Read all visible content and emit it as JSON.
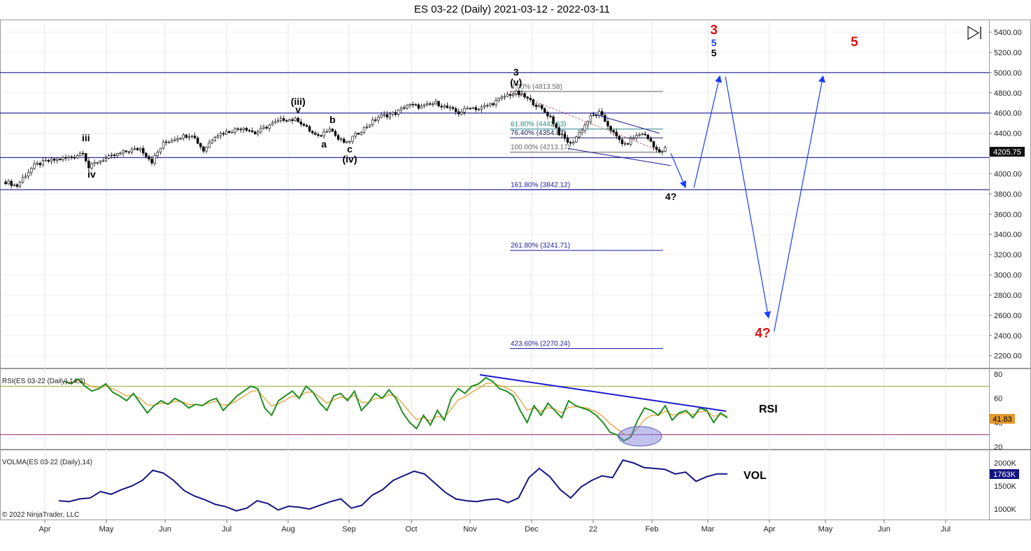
{
  "title": "ES 03-22 (Daily)  2021-03-12 - 2022-03-11",
  "copyright": "© 2022 NinjaTrader, LLC",
  "play_icon": "skip-forward-icon",
  "panels": {
    "rsi": {
      "label": "RSI(ES 03-22 (Daily),14,3)",
      "tag": "RSI",
      "current": "41.83"
    },
    "vol": {
      "label": "VOLMA(ES 03-22 (Daily),14)",
      "tag": "VOL",
      "current": "1763K"
    }
  },
  "price_current": "4205.75",
  "colors": {
    "candle": "#000000",
    "fib_blue": "#1a1aa0",
    "fib_gray": "#666666",
    "fib_teal": "#2a8a8a",
    "arrow": "#1a3cff",
    "red": "#e01010",
    "rsi": "#1f8f1f",
    "rsi_signal": "#e39a2d",
    "vol": "#141480",
    "hline": "#1a1a90",
    "ob": "#9aa830",
    "os": "#a0206a"
  },
  "chart_data": [
    {
      "type": "candlestick",
      "x_axis": [
        "Apr",
        "May",
        "Jun",
        "Jul",
        "Aug",
        "Sep",
        "Oct",
        "Nov",
        "Dec",
        "22",
        "Feb",
        "Mar",
        "Apr",
        "May",
        "Jun",
        "Jul"
      ],
      "ylim": [
        2100,
        5500
      ],
      "y_ticks": [
        "2200.00",
        "2400.00",
        "2600.00",
        "2800.00",
        "3000.00",
        "3200.00",
        "3400.00",
        "3600.00",
        "3800.00",
        "4000.00",
        "4200.00",
        "4400.00",
        "4600.00",
        "4800.00",
        "5000.00",
        "5200.00",
        "5400.00"
      ],
      "path": [
        [
          0,
          3920
        ],
        [
          4,
          3880
        ],
        [
          6,
          3960
        ],
        [
          10,
          4080
        ],
        [
          14,
          4120
        ],
        [
          18,
          4140
        ],
        [
          24,
          4170
        ],
        [
          27,
          4220
        ],
        [
          29,
          4060
        ],
        [
          32,
          4120
        ],
        [
          37,
          4170
        ],
        [
          42,
          4220
        ],
        [
          47,
          4250
        ],
        [
          51,
          4120
        ],
        [
          55,
          4300
        ],
        [
          60,
          4360
        ],
        [
          65,
          4390
        ],
        [
          69,
          4230
        ],
        [
          73,
          4380
        ],
        [
          78,
          4420
        ],
        [
          83,
          4460
        ],
        [
          87,
          4400
        ],
        [
          92,
          4480
        ],
        [
          97,
          4540
        ],
        [
          102,
          4530
        ],
        [
          107,
          4400
        ],
        [
          109,
          4360
        ],
        [
          113,
          4460
        ],
        [
          116,
          4340
        ],
        [
          119,
          4300
        ],
        [
          121,
          4360
        ],
        [
          125,
          4450
        ],
        [
          130,
          4560
        ],
        [
          136,
          4600
        ],
        [
          140,
          4680
        ],
        [
          145,
          4660
        ],
        [
          150,
          4700
        ],
        [
          155,
          4640
        ],
        [
          158,
          4600
        ],
        [
          162,
          4660
        ],
        [
          165,
          4640
        ],
        [
          170,
          4700
        ],
        [
          175,
          4780
        ],
        [
          178,
          4800
        ],
        [
          181,
          4760
        ],
        [
          186,
          4660
        ],
        [
          190,
          4560
        ],
        [
          193,
          4400
        ],
        [
          197,
          4290
        ],
        [
          201,
          4440
        ],
        [
          204,
          4560
        ],
        [
          207,
          4600
        ],
        [
          210,
          4480
        ],
        [
          213,
          4360
        ],
        [
          216,
          4280
        ],
        [
          219,
          4360
        ],
        [
          222,
          4400
        ],
        [
          225,
          4320
        ],
        [
          228,
          4200
        ],
        [
          230,
          4250
        ]
      ],
      "hlines": [
        5000,
        4600,
        4160,
        3842
      ],
      "fib_levels": [
        {
          "label": "0.00% (4813.58)",
          "value": 4813.58
        },
        {
          "label": "61.80% (4442.53)",
          "value": 4442.53
        },
        {
          "label": "76.40% (4354.87)",
          "value": 4354.87
        },
        {
          "label": "100.00% (4213.17)",
          "value": 4213.17
        },
        {
          "label": "161.80% (3842.12)",
          "value": 3842.12
        },
        {
          "label": "261.80% (3241.71)",
          "value": 3241.71
        },
        {
          "label": "423.60% (2270.24)",
          "value": 2270.24
        }
      ],
      "wave_labels": [
        {
          "text": "iii",
          "day": 28,
          "price": 4320,
          "color": "#000000"
        },
        {
          "text": "iv",
          "day": 30,
          "price": 3960,
          "color": "#000000"
        },
        {
          "text": "(iii)",
          "day": 102,
          "price": 4680,
          "color": "#000000"
        },
        {
          "text": "v",
          "day": 102,
          "price": 4600,
          "color": "#000000"
        },
        {
          "text": "a",
          "day": 111,
          "price": 4260,
          "color": "#000000"
        },
        {
          "text": "b",
          "day": 114,
          "price": 4500,
          "color": "#000000"
        },
        {
          "text": "c",
          "day": 120,
          "price": 4210,
          "color": "#000000"
        },
        {
          "text": "(iv)",
          "day": 120,
          "price": 4110,
          "color": "#000000"
        },
        {
          "text": "3",
          "day": 178,
          "price": 4970,
          "color": "#000000"
        },
        {
          "text": "(v)",
          "day": 178,
          "price": 4870,
          "color": "#000000"
        },
        {
          "text": "4?",
          "day": 232,
          "price": 3740,
          "color": "#000000"
        },
        {
          "text": "3",
          "day": 247,
          "price": 5380,
          "color": "#e01010"
        },
        {
          "text": "5",
          "day": 247,
          "price": 5260,
          "color": "#1a3cff"
        },
        {
          "text": "5",
          "day": 247,
          "price": 5160,
          "color": "#000000"
        },
        {
          "text": "5",
          "day": 296,
          "price": 5260,
          "color": "#e01010"
        },
        {
          "text": "4?",
          "day": 264,
          "price": 2380,
          "color": "#e01010"
        }
      ],
      "projection_arrows": [
        [
          [
            232,
            4200
          ],
          [
            237,
            3870
          ]
        ],
        [
          [
            240,
            3860
          ],
          [
            249,
            4960
          ]
        ],
        [
          [
            251,
            4960
          ],
          [
            266,
            2580
          ]
        ],
        [
          [
            268,
            2440
          ],
          [
            285,
            4960
          ]
        ]
      ]
    },
    {
      "type": "line",
      "name": "RSI",
      "ylim": [
        20,
        80
      ],
      "y_ticks": [
        "20",
        "40",
        "60",
        "80"
      ],
      "overbought": 70,
      "oversold": 30,
      "values": [
        74,
        72,
        76,
        70,
        66,
        68,
        72,
        65,
        62,
        58,
        64,
        56,
        48,
        54,
        58,
        55,
        60,
        57,
        52,
        55,
        54,
        58,
        60,
        50,
        56,
        62,
        66,
        70,
        68,
        52,
        46,
        58,
        62,
        66,
        60,
        70,
        65,
        56,
        50,
        62,
        64,
        58,
        66,
        50,
        56,
        64,
        60,
        67,
        60,
        48,
        40,
        35,
        46,
        38,
        50,
        42,
        60,
        68,
        64,
        70,
        72,
        77,
        74,
        68,
        66,
        62,
        50,
        40,
        54,
        46,
        56,
        50,
        44,
        58,
        54,
        52,
        50,
        46,
        40,
        32,
        30,
        25,
        28,
        42,
        52,
        50,
        46,
        54,
        42,
        48,
        50,
        44,
        52,
        50,
        40,
        48,
        44
      ]
    },
    {
      "type": "line",
      "name": "VOLMA",
      "ylim": [
        900,
        2100
      ],
      "y_ticks": [
        "1000K",
        "1500K",
        "2000K"
      ],
      "values": [
        1180,
        1160,
        1220,
        1240,
        1380,
        1320,
        1420,
        1500,
        1620,
        1840,
        1780,
        1620,
        1400,
        1280,
        1200,
        1100,
        1050,
        960,
        1020,
        1180,
        1120,
        980,
        1060,
        1040,
        1000,
        1080,
        1160,
        1220,
        1020,
        1080,
        1300,
        1420,
        1620,
        1720,
        1820,
        1760,
        1560,
        1360,
        1220,
        1180,
        1160,
        1200,
        1220,
        1140,
        1240,
        1680,
        1880,
        1700,
        1420,
        1240,
        1480,
        1620,
        1720,
        1680,
        2060,
        2000,
        1900,
        1880,
        1860,
        1760,
        1800,
        1600,
        1700,
        1760,
        1760
      ]
    }
  ]
}
